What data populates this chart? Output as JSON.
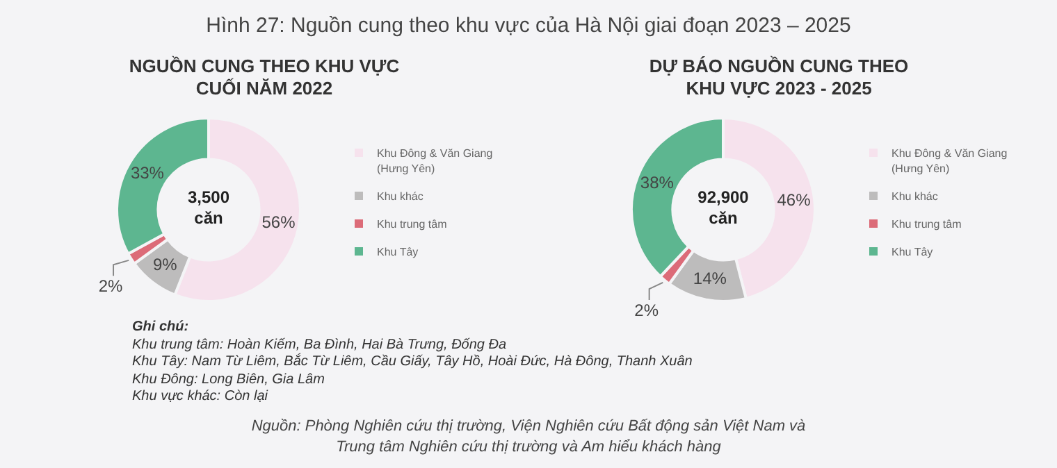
{
  "chart_data": [
    {
      "type": "donut",
      "title": "NGUỒN CUNG THEO KHU VỰC CUỐI NĂM 2022",
      "categories": [
        "Khu Đông & Văn Giang (Hưng Yên)",
        "Khu khác",
        "Khu trung tâm",
        "Khu Tây"
      ],
      "values": [
        56,
        9,
        2,
        33
      ],
      "value_labels": [
        "56%",
        "9%",
        "2%",
        "33%"
      ],
      "colors": [
        "#f6e2ed",
        "#bdbcbc",
        "#dc6b78",
        "#5db690"
      ],
      "legend": "right",
      "annotations": [
        "Hình 27: Nguồn cung theo khu vực của Hà Nội giai đoạn 2023 – 2025",
        "3,500 căn"
      ]
    },
    {
      "type": "donut",
      "title": "DỰ BÁO NGUỒN CUNG THEO KHU VỰC 2023 - 2025",
      "categories": [
        "Khu Đông & Văn Giang (Hưng Yên)",
        "Khu khác",
        "Khu trung tâm",
        "Khu Tây"
      ],
      "values": [
        46,
        14,
        2,
        38
      ],
      "value_labels": [
        "46%",
        "14%",
        "2%",
        "38%"
      ],
      "colors": [
        "#f6e2ed",
        "#bdbcbc",
        "#dc6b78",
        "#5db690"
      ],
      "legend": "right",
      "annotations": [
        "92,900 căn",
        "Ghi chú:",
        "Khu trung tâm: Hoàn Kiếm, Ba Đình, Hai Bà Trưng, Đống Đa",
        "Khu Tây: Nam Từ Liêm, Bắc Từ Liêm, Cầu Giấy, Tây Hồ, Hoài Đức, Hà Đông, Thanh Xuân",
        "Khu Đông: Long Biên, Gia Lâm",
        "Khu vực khác: Còn lại",
        "Nguồn: Phòng Nghiên cứu thị trường, Viện Nghiên cứu Bất động sản Việt Nam và Trung tâm Nghiên cứu thị trường và Am hiểu khách hàng"
      ]
    }
  ]
}
